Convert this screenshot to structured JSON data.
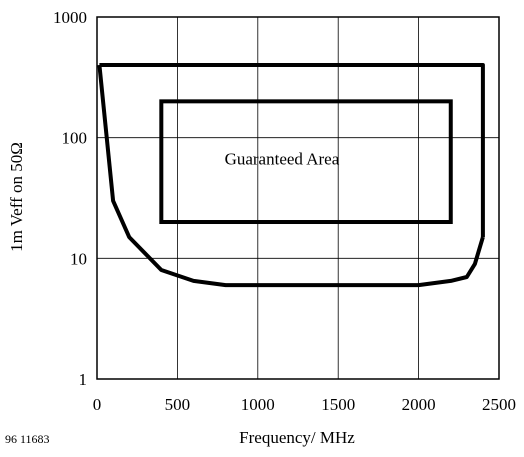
{
  "chart_data": {
    "type": "line",
    "title": "",
    "xlabel": "Frequency/ MHz",
    "ylabel": "1m Veff on 50Ω",
    "xlim": [
      0,
      2500
    ],
    "ylim": [
      1,
      1000
    ],
    "yscale": "log",
    "grid": true,
    "x_ticks": [
      0,
      500,
      1000,
      1500,
      2000,
      2500
    ],
    "x_tick_labels": [
      "0",
      "500",
      "1000",
      "1500",
      "2000",
      "2500"
    ],
    "y_ticks": [
      1,
      10,
      100,
      1000
    ],
    "y_tick_labels": [
      "1",
      "10",
      "100",
      "1000"
    ],
    "series": [
      {
        "x": [
          15,
          100,
          200,
          400,
          600,
          800,
          1000,
          1500,
          2000,
          2200,
          2300,
          2350,
          2400
        ],
        "y": [
          400,
          30,
          15,
          8,
          6.5,
          6,
          6,
          6,
          6,
          6.5,
          7,
          9,
          15
        ]
      },
      {
        "x": [
          15,
          2400,
          2400
        ],
        "y": [
          400,
          400,
          15
        ]
      }
    ],
    "rectangles": [
      {
        "x0": 400,
        "x1": 2200,
        "y0": 20,
        "y1": 200
      }
    ],
    "annotations": [
      {
        "text": "Guaranteed Area",
        "x": 1150,
        "y": 60
      }
    ],
    "figure_id": "96 11683"
  }
}
